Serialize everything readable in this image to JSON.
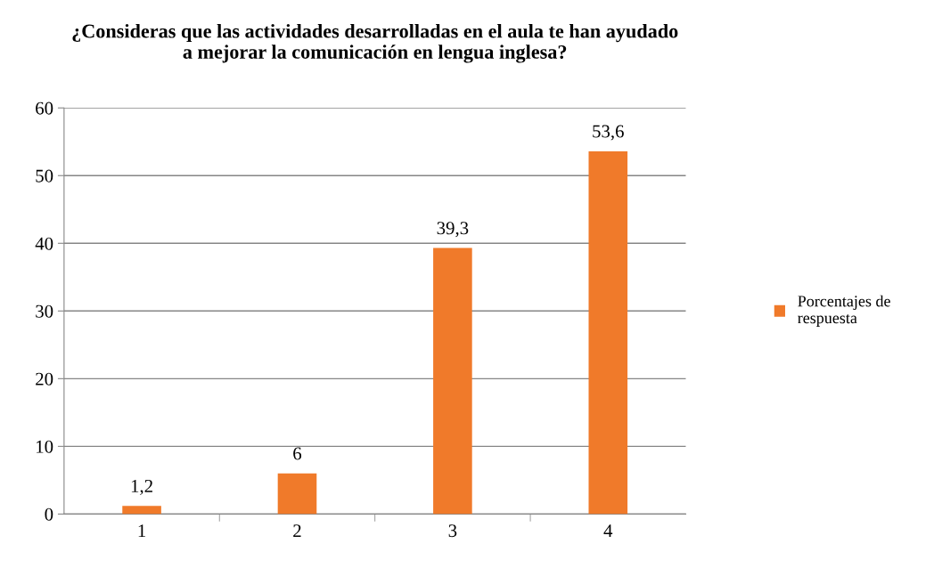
{
  "chart_data": {
    "type": "bar",
    "title": "¿Consideras que las actividades desarrolladas en el aula te han ayudado\na mejorar la comunicación en lengua inglesa?",
    "categories": [
      "1",
      "2",
      "3",
      "4"
    ],
    "series": [
      {
        "name": "Porcentajes de\nrespuesta",
        "color": "#f07a2a",
        "values": [
          1.2,
          6,
          39.3,
          53.6
        ],
        "value_labels": [
          "1,2",
          "6",
          "39,3",
          "53,6"
        ]
      }
    ],
    "ylim": [
      0,
      60
    ],
    "yticks": [
      0,
      10,
      20,
      30,
      40,
      50,
      60
    ],
    "grid": "y",
    "legend": "right"
  }
}
